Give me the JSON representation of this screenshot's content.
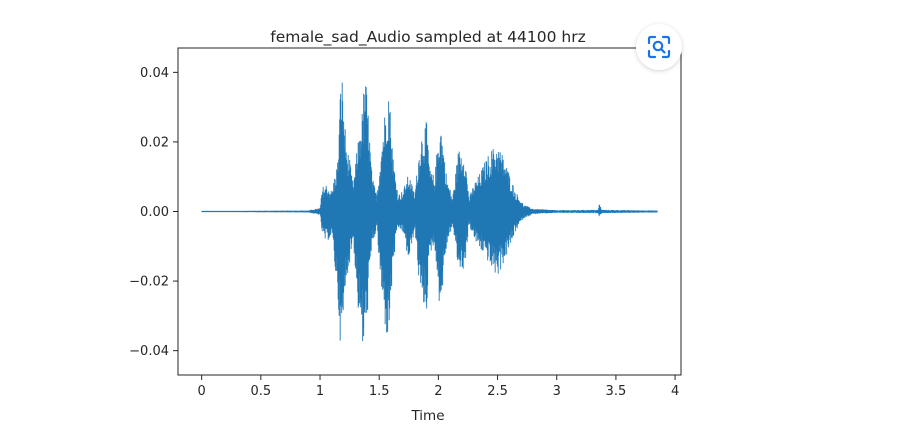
{
  "chart_data": {
    "type": "line",
    "title": "female_sad_Audio sampled at 44100 hrz",
    "xlabel": "Time",
    "ylabel": "",
    "xlim": [
      -0.2,
      4.05
    ],
    "ylim": [
      -0.047,
      0.047
    ],
    "x_ticks": [
      0,
      0.5,
      1,
      1.5,
      2,
      2.5,
      3,
      3.5,
      4
    ],
    "x_tick_labels": [
      "0",
      "0.5",
      "1",
      "1.5",
      "2",
      "2.5",
      "3",
      "3.5",
      "4"
    ],
    "y_ticks": [
      0.04,
      0.02,
      0.0,
      -0.02,
      -0.04
    ],
    "y_tick_labels": [
      "0.04",
      "0.02",
      "0.00",
      "−0.02",
      "−0.04"
    ],
    "grid": false,
    "legend": "none",
    "color": "#1f77b4",
    "series": [
      {
        "duration": 3.85,
        "envelope_upper": [
          [
            0.0,
            0.0001
          ],
          [
            0.9,
            0.0003
          ],
          [
            1.0,
            0.001
          ],
          [
            1.02,
            0.007
          ],
          [
            1.05,
            0.008
          ],
          [
            1.1,
            0.006
          ],
          [
            1.15,
            0.015
          ],
          [
            1.18,
            0.043
          ],
          [
            1.22,
            0.02
          ],
          [
            1.25,
            0.015
          ],
          [
            1.28,
            0.008
          ],
          [
            1.32,
            0.02
          ],
          [
            1.36,
            0.03
          ],
          [
            1.38,
            0.041
          ],
          [
            1.4,
            0.033
          ],
          [
            1.44,
            0.01
          ],
          [
            1.48,
            0.005
          ],
          [
            1.52,
            0.02
          ],
          [
            1.56,
            0.033
          ],
          [
            1.58,
            0.037
          ],
          [
            1.62,
            0.015
          ],
          [
            1.66,
            0.005
          ],
          [
            1.7,
            0.006
          ],
          [
            1.75,
            0.011
          ],
          [
            1.8,
            0.005
          ],
          [
            1.85,
            0.022
          ],
          [
            1.9,
            0.026
          ],
          [
            1.93,
            0.012
          ],
          [
            1.97,
            0.01
          ],
          [
            2.0,
            0.023
          ],
          [
            2.02,
            0.026
          ],
          [
            2.07,
            0.01
          ],
          [
            2.12,
            0.004
          ],
          [
            2.17,
            0.018
          ],
          [
            2.22,
            0.018
          ],
          [
            2.26,
            0.004
          ],
          [
            2.3,
            0.008
          ],
          [
            2.35,
            0.011
          ],
          [
            2.4,
            0.015
          ],
          [
            2.45,
            0.018
          ],
          [
            2.5,
            0.0195
          ],
          [
            2.55,
            0.016
          ],
          [
            2.6,
            0.011
          ],
          [
            2.65,
            0.006
          ],
          [
            2.72,
            0.002
          ],
          [
            2.8,
            0.0008
          ],
          [
            3.0,
            0.0004
          ],
          [
            3.35,
            0.0005
          ],
          [
            3.36,
            0.0025
          ],
          [
            3.38,
            0.0005
          ],
          [
            3.85,
            0.0003
          ]
        ],
        "envelope_lower": [
          [
            0.0,
            -0.0001
          ],
          [
            0.9,
            -0.0003
          ],
          [
            1.0,
            -0.001
          ],
          [
            1.02,
            -0.007
          ],
          [
            1.05,
            -0.009
          ],
          [
            1.1,
            -0.007
          ],
          [
            1.15,
            -0.025
          ],
          [
            1.18,
            -0.043
          ],
          [
            1.22,
            -0.02
          ],
          [
            1.25,
            -0.015
          ],
          [
            1.28,
            -0.008
          ],
          [
            1.32,
            -0.028
          ],
          [
            1.36,
            -0.04
          ],
          [
            1.38,
            -0.04
          ],
          [
            1.4,
            -0.03
          ],
          [
            1.44,
            -0.01
          ],
          [
            1.48,
            -0.005
          ],
          [
            1.52,
            -0.025
          ],
          [
            1.56,
            -0.036
          ],
          [
            1.58,
            -0.037
          ],
          [
            1.62,
            -0.015
          ],
          [
            1.66,
            -0.005
          ],
          [
            1.7,
            -0.006
          ],
          [
            1.75,
            -0.015
          ],
          [
            1.8,
            -0.005
          ],
          [
            1.85,
            -0.026
          ],
          [
            1.9,
            -0.029
          ],
          [
            1.93,
            -0.012
          ],
          [
            1.97,
            -0.01
          ],
          [
            2.0,
            -0.025
          ],
          [
            2.02,
            -0.028
          ],
          [
            2.07,
            -0.01
          ],
          [
            2.12,
            -0.004
          ],
          [
            2.17,
            -0.017
          ],
          [
            2.22,
            -0.017
          ],
          [
            2.26,
            -0.004
          ],
          [
            2.3,
            -0.008
          ],
          [
            2.35,
            -0.011
          ],
          [
            2.4,
            -0.013
          ],
          [
            2.45,
            -0.017
          ],
          [
            2.5,
            -0.019
          ],
          [
            2.55,
            -0.015
          ],
          [
            2.6,
            -0.011
          ],
          [
            2.65,
            -0.006
          ],
          [
            2.72,
            -0.002
          ],
          [
            2.8,
            -0.0008
          ],
          [
            3.0,
            -0.0004
          ],
          [
            3.35,
            -0.0005
          ],
          [
            3.36,
            -0.0015
          ],
          [
            3.38,
            -0.0005
          ],
          [
            3.85,
            -0.0003
          ]
        ]
      }
    ]
  },
  "ui": {
    "lens_button_icon": "visual-search-lens-icon",
    "lens_button_color": "#1a73e8"
  }
}
